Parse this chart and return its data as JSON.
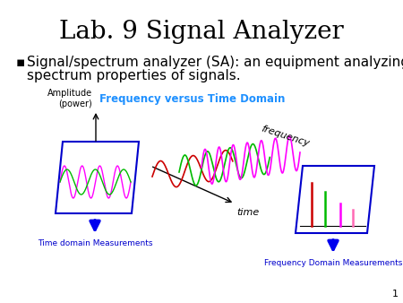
{
  "title": "Lab. 9 Signal Analyzer",
  "title_fontsize": 20,
  "title_color": "#000000",
  "bullet_text_line1": "Signal/spectrum analyzer (SA): an equipment analyzing",
  "bullet_text_line2": "spectrum properties of signals.",
  "bullet_fontsize": 11,
  "bullet_color": "#000000",
  "diagram_title": "Frequency versus Time Domain",
  "diagram_title_color": "#1E90FF",
  "diagram_title_fontsize": 8.5,
  "amplitude_label": "Amplitude\n(power)",
  "time_label": "time",
  "frequency_label": "frequency",
  "time_domain_label": "Time domain Measurements",
  "freq_domain_label": "Frequency Domain Measurements",
  "label_color": "#0000CC",
  "label_fontsize": 6.5,
  "page_number": "1",
  "background_color": "#ffffff",
  "arrow_color": "#0000EE",
  "box_color": "#0000CC",
  "wave_magenta": "#FF00FF",
  "wave_green": "#00BB00",
  "wave_red": "#CC0000",
  "wave_pink": "#FF69B4"
}
